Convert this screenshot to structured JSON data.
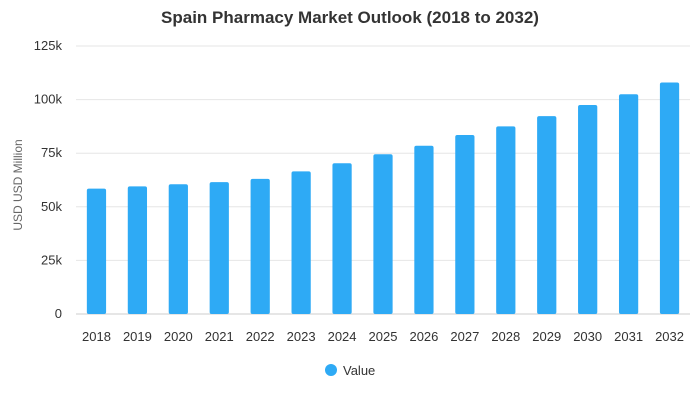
{
  "chart_data": {
    "type": "bar",
    "title": "Spain Pharmacy Market Outlook (2018 to 2032)",
    "xlabel": "",
    "ylabel": "USD USD Million",
    "categories": [
      "2018",
      "2019",
      "2020",
      "2021",
      "2022",
      "2023",
      "2024",
      "2025",
      "2026",
      "2027",
      "2028",
      "2029",
      "2030",
      "2031",
      "2032"
    ],
    "series": [
      {
        "name": "Value",
        "color": "#2eaaf5",
        "values": [
          58500,
          59500,
          60500,
          61500,
          63000,
          66500,
          70300,
          74500,
          78500,
          83500,
          87500,
          92300,
          97500,
          102500,
          108000
        ]
      }
    ],
    "ylim": [
      0,
      125000
    ],
    "yticks": [
      0,
      25000,
      50000,
      75000,
      100000,
      125000
    ],
    "ytick_labels": [
      "0",
      "25k",
      "50k",
      "75k",
      "100k",
      "125k"
    ],
    "grid": true,
    "legend_position": "bottom-center"
  }
}
